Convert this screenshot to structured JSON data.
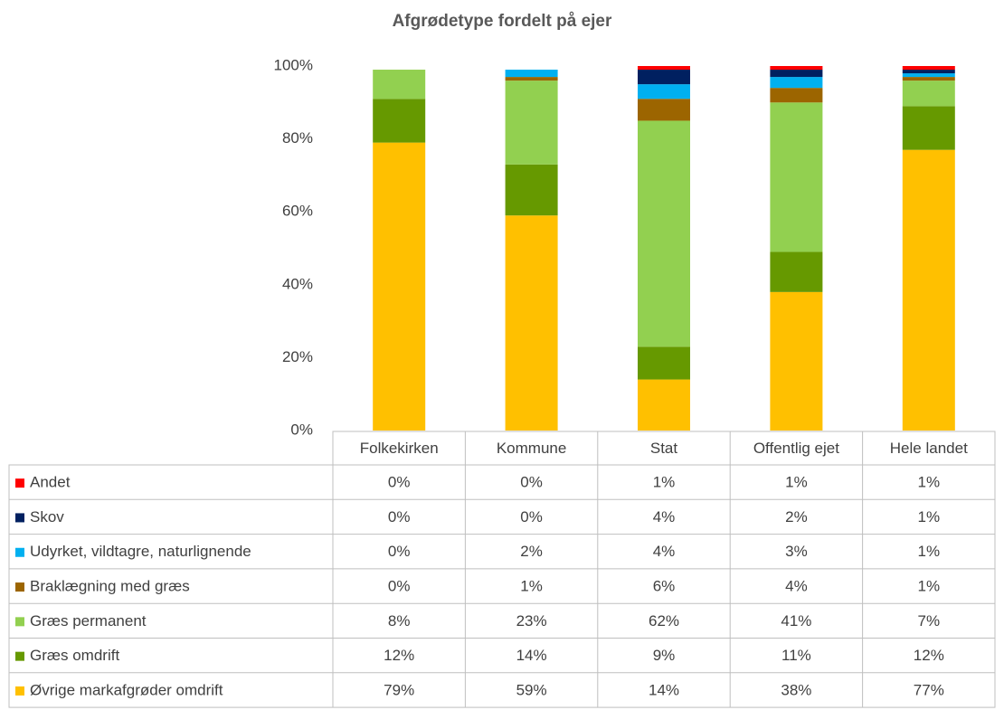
{
  "chart_data": {
    "type": "stacked_bar_table",
    "title": "Afgrødetype fordelt på ejer",
    "categories": [
      "Folkekirken",
      "Kommune",
      "Stat",
      "Offentlig ejet",
      "Hele landet"
    ],
    "ylim": [
      0,
      100
    ],
    "yticks": [
      {
        "value": 0,
        "label": "0%"
      },
      {
        "value": 20,
        "label": "20%"
      },
      {
        "value": 40,
        "label": "40%"
      },
      {
        "value": 60,
        "label": "60%"
      },
      {
        "value": 80,
        "label": "80%"
      },
      {
        "value": 100,
        "label": "100%"
      }
    ],
    "series": [
      {
        "name": "Øvrige markafgrøder omdrift",
        "color": "#ffc000",
        "values": [
          79,
          59,
          14,
          38,
          77
        ],
        "value_labels": [
          "79%",
          "59%",
          "14%",
          "38%",
          "77%"
        ]
      },
      {
        "name": "Græs omdrift",
        "color": "#669900",
        "values": [
          12,
          14,
          9,
          11,
          12
        ],
        "value_labels": [
          "12%",
          "14%",
          "9%",
          "11%",
          "12%"
        ]
      },
      {
        "name": "Græs permanent",
        "color": "#92d050",
        "values": [
          8,
          23,
          62,
          41,
          7
        ],
        "value_labels": [
          "8%",
          "23%",
          "62%",
          "41%",
          "7%"
        ]
      },
      {
        "name": "Braklægning med græs",
        "color": "#9c6500",
        "values": [
          0,
          1,
          6,
          4,
          1
        ],
        "value_labels": [
          "0%",
          "1%",
          "6%",
          "4%",
          "1%"
        ]
      },
      {
        "name": "Udyrket, vildtagre, naturlignende",
        "color": "#00b0f0",
        "values": [
          0,
          2,
          4,
          3,
          1
        ],
        "value_labels": [
          "0%",
          "2%",
          "4%",
          "3%",
          "1%"
        ]
      },
      {
        "name": "Skov",
        "color": "#002060",
        "values": [
          0,
          0,
          4,
          2,
          1
        ],
        "value_labels": [
          "0%",
          "0%",
          "4%",
          "2%",
          "1%"
        ]
      },
      {
        "name": "Andet",
        "color": "#ff0000",
        "values": [
          0,
          0,
          1,
          1,
          1
        ],
        "value_labels": [
          "0%",
          "0%",
          "1%",
          "1%",
          "1%"
        ]
      }
    ]
  }
}
